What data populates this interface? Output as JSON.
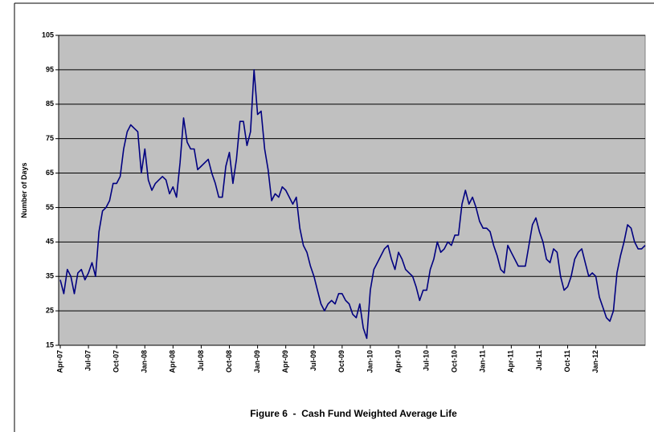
{
  "chart_data": {
    "type": "line",
    "title": "Figure 6  -  Cash Fund Weighted Average Life",
    "y_label": "Number of Days",
    "categories": [
      "Apr-07",
      null,
      null,
      null,
      null,
      null,
      null,
      null,
      "Jul-07",
      null,
      null,
      null,
      null,
      null,
      null,
      null,
      "Oct-07",
      null,
      null,
      null,
      null,
      null,
      null,
      null,
      "Jan-08",
      null,
      null,
      null,
      null,
      null,
      null,
      null,
      "Apr-08",
      null,
      null,
      null,
      null,
      null,
      null,
      null,
      "Jul-08",
      null,
      null,
      null,
      null,
      null,
      null,
      null,
      "Oct-08",
      null,
      null,
      null,
      null,
      null,
      null,
      null,
      "Jan-09",
      null,
      null,
      null,
      null,
      null,
      null,
      null,
      "Apr-09",
      null,
      null,
      null,
      null,
      null,
      null,
      null,
      "Jul-09",
      null,
      null,
      null,
      null,
      null,
      null,
      null,
      "Oct-09",
      null,
      null,
      null,
      null,
      null,
      null,
      null,
      "Jan-10",
      null,
      null,
      null,
      null,
      null,
      null,
      null,
      "Apr-10",
      null,
      null,
      null,
      null,
      null,
      null,
      null,
      "Jul-10",
      null,
      null,
      null,
      null,
      null,
      null,
      null,
      "Oct-10",
      null,
      null,
      null,
      null,
      null,
      null,
      null,
      "Jan-11",
      null,
      null,
      null,
      null,
      null,
      null,
      null,
      "Apr-11",
      null,
      null,
      null,
      null,
      null,
      null,
      null,
      "Jul-11",
      null,
      null,
      null,
      null,
      null,
      null,
      null,
      "Oct-11",
      null,
      null,
      null,
      null,
      null,
      null,
      null,
      "Jan-12",
      null,
      null,
      null,
      null,
      null,
      null,
      null,
      null,
      null,
      null,
      null,
      null,
      null,
      null
    ],
    "values": [
      34,
      30,
      37,
      35,
      30,
      36,
      37,
      34,
      36,
      39,
      35,
      48,
      54,
      55,
      57,
      62,
      62,
      64,
      72,
      77,
      79,
      78,
      77,
      65,
      72,
      63,
      60,
      62,
      63,
      64,
      63,
      59,
      61,
      58,
      68,
      81,
      74,
      72,
      72,
      66,
      67,
      68,
      69,
      65,
      62,
      58,
      58,
      67,
      71,
      62,
      69,
      80,
      80,
      73,
      77,
      95,
      82,
      83,
      72,
      66,
      57,
      59,
      58,
      61,
      60,
      58,
      56,
      58,
      49,
      44,
      42,
      38,
      35,
      31,
      27,
      25,
      27,
      28,
      27,
      30,
      30,
      28,
      27,
      24,
      23,
      27,
      20,
      17,
      31,
      37,
      39,
      41,
      43,
      44,
      40,
      37,
      42,
      40,
      37,
      36,
      35,
      32,
      28,
      31,
      31,
      37,
      40,
      45,
      42,
      43,
      45,
      44,
      47,
      47,
      56,
      60,
      56,
      58,
      55,
      51,
      49,
      49,
      48,
      44,
      41,
      37,
      36,
      44,
      42,
      40,
      38,
      38,
      38,
      44,
      50,
      52,
      48,
      45,
      40,
      39,
      43,
      42,
      35,
      31,
      32,
      35,
      40,
      42,
      43,
      39,
      35,
      36,
      35,
      29,
      26,
      23,
      22,
      25,
      36,
      41,
      45,
      50,
      49,
      45,
      43,
      43,
      44
    ],
    "color": "#000080",
    "plot_background": "#c0c0c0",
    "grid": true,
    "ylim": [
      15,
      105
    ],
    "yticks": [
      15,
      25,
      35,
      45,
      55,
      65,
      75,
      85,
      95,
      105
    ]
  }
}
